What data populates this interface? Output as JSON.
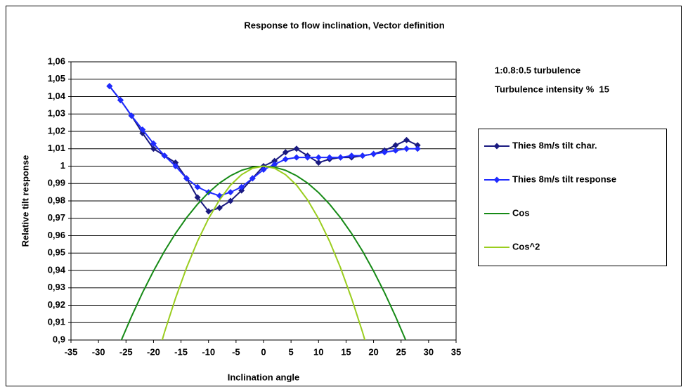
{
  "chart_data": {
    "type": "line",
    "title": "Response to flow inclination, Vector definition",
    "xlabel": "Inclination angle",
    "ylabel": "Relative tilt response",
    "annotations": [
      "1:0.8:0.5 turbulence",
      "Turbulence intensity %  15"
    ],
    "xlim": [
      -35,
      35
    ],
    "xticks": [
      -35,
      -30,
      -25,
      -20,
      -15,
      -10,
      -5,
      0,
      5,
      10,
      15,
      20,
      25,
      30,
      35
    ],
    "ylim": [
      0.9,
      1.06
    ],
    "yticks": [
      {
        "value": 0.9,
        "label": "0,9"
      },
      {
        "value": 0.91,
        "label": "0,91"
      },
      {
        "value": 0.92,
        "label": "0,92"
      },
      {
        "value": 0.93,
        "label": "0,93"
      },
      {
        "value": 0.94,
        "label": "0,94"
      },
      {
        "value": 0.95,
        "label": "0,95"
      },
      {
        "value": 0.96,
        "label": "0,96"
      },
      {
        "value": 0.97,
        "label": "0,97"
      },
      {
        "value": 0.98,
        "label": "0,98"
      },
      {
        "value": 0.99,
        "label": "0,99"
      },
      1,
      {
        "value": 1.01,
        "label": "1,01"
      },
      {
        "value": 1.02,
        "label": "1,02"
      },
      {
        "value": 1.03,
        "label": "1,03"
      },
      {
        "value": 1.04,
        "label": "1,04"
      },
      {
        "value": 1.05,
        "label": "1,05"
      },
      {
        "value": 1.06,
        "label": "1,06"
      }
    ],
    "grid": true,
    "legend": "right",
    "series": [
      {
        "name": "Thies 8m/s tilt char.",
        "color": "#1a1a80",
        "marker": "diamond",
        "x": [
          -28,
          -26,
          -24,
          -22,
          -20,
          -18,
          -16,
          -14,
          -12,
          -10,
          -8,
          -6,
          -4,
          -2,
          0,
          2,
          4,
          6,
          8,
          10,
          12,
          14,
          16,
          18,
          20,
          22,
          24,
          26,
          28
        ],
        "values": [
          1.046,
          1.038,
          1.029,
          1.019,
          1.01,
          1.006,
          1.002,
          0.993,
          0.982,
          0.974,
          0.976,
          0.98,
          0.986,
          0.993,
          1.0,
          1.003,
          1.008,
          1.01,
          1.006,
          1.002,
          1.004,
          1.005,
          1.005,
          1.006,
          1.007,
          1.009,
          1.012,
          1.015,
          1.012
        ]
      },
      {
        "name": "Thies 8m/s tilt response",
        "color": "#1f2bff",
        "marker": "diamond",
        "x": [
          -28,
          -26,
          -24,
          -22,
          -20,
          -18,
          -16,
          -14,
          -12,
          -10,
          -8,
          -6,
          -4,
          -2,
          0,
          2,
          4,
          6,
          8,
          10,
          12,
          14,
          16,
          18,
          20,
          22,
          24,
          26,
          28
        ],
        "values": [
          1.046,
          1.038,
          1.029,
          1.021,
          1.013,
          1.006,
          1.0,
          0.993,
          0.988,
          0.985,
          0.983,
          0.985,
          0.988,
          0.993,
          0.998,
          1.001,
          1.004,
          1.005,
          1.005,
          1.005,
          1.005,
          1.005,
          1.006,
          1.006,
          1.007,
          1.008,
          1.009,
          1.01,
          1.01
        ]
      },
      {
        "name": "Cos",
        "color": "#168a16",
        "marker": "none",
        "x": [
          -26,
          -24,
          -22,
          -20,
          -18,
          -16,
          -14,
          -12,
          -10,
          -8,
          -6,
          -4,
          -2,
          0,
          2,
          4,
          6,
          8,
          10,
          12,
          14,
          16,
          18,
          20,
          22,
          24,
          26
        ],
        "values": [
          0.8988,
          0.9135,
          0.9272,
          0.9397,
          0.9511,
          0.9613,
          0.9703,
          0.9781,
          0.9848,
          0.9903,
          0.9945,
          0.9976,
          0.9994,
          1,
          0.9994,
          0.9976,
          0.9945,
          0.9903,
          0.9848,
          0.9781,
          0.9703,
          0.9613,
          0.9511,
          0.9397,
          0.9272,
          0.9135,
          0.8988
        ]
      },
      {
        "name": "Cos^2",
        "color": "#9acd1e",
        "marker": "none",
        "x": [
          -20,
          -18,
          -16,
          -14,
          -12,
          -10,
          -8,
          -6,
          -4,
          -2,
          0,
          2,
          4,
          6,
          8,
          10,
          12,
          14,
          16,
          18,
          20
        ],
        "values": [
          0.883,
          0.9045,
          0.924,
          0.9415,
          0.9568,
          0.9698,
          0.9806,
          0.9891,
          0.9951,
          0.9988,
          1,
          0.9988,
          0.9951,
          0.9891,
          0.9806,
          0.9698,
          0.9568,
          0.9415,
          0.924,
          0.9045,
          0.883
        ]
      }
    ]
  }
}
